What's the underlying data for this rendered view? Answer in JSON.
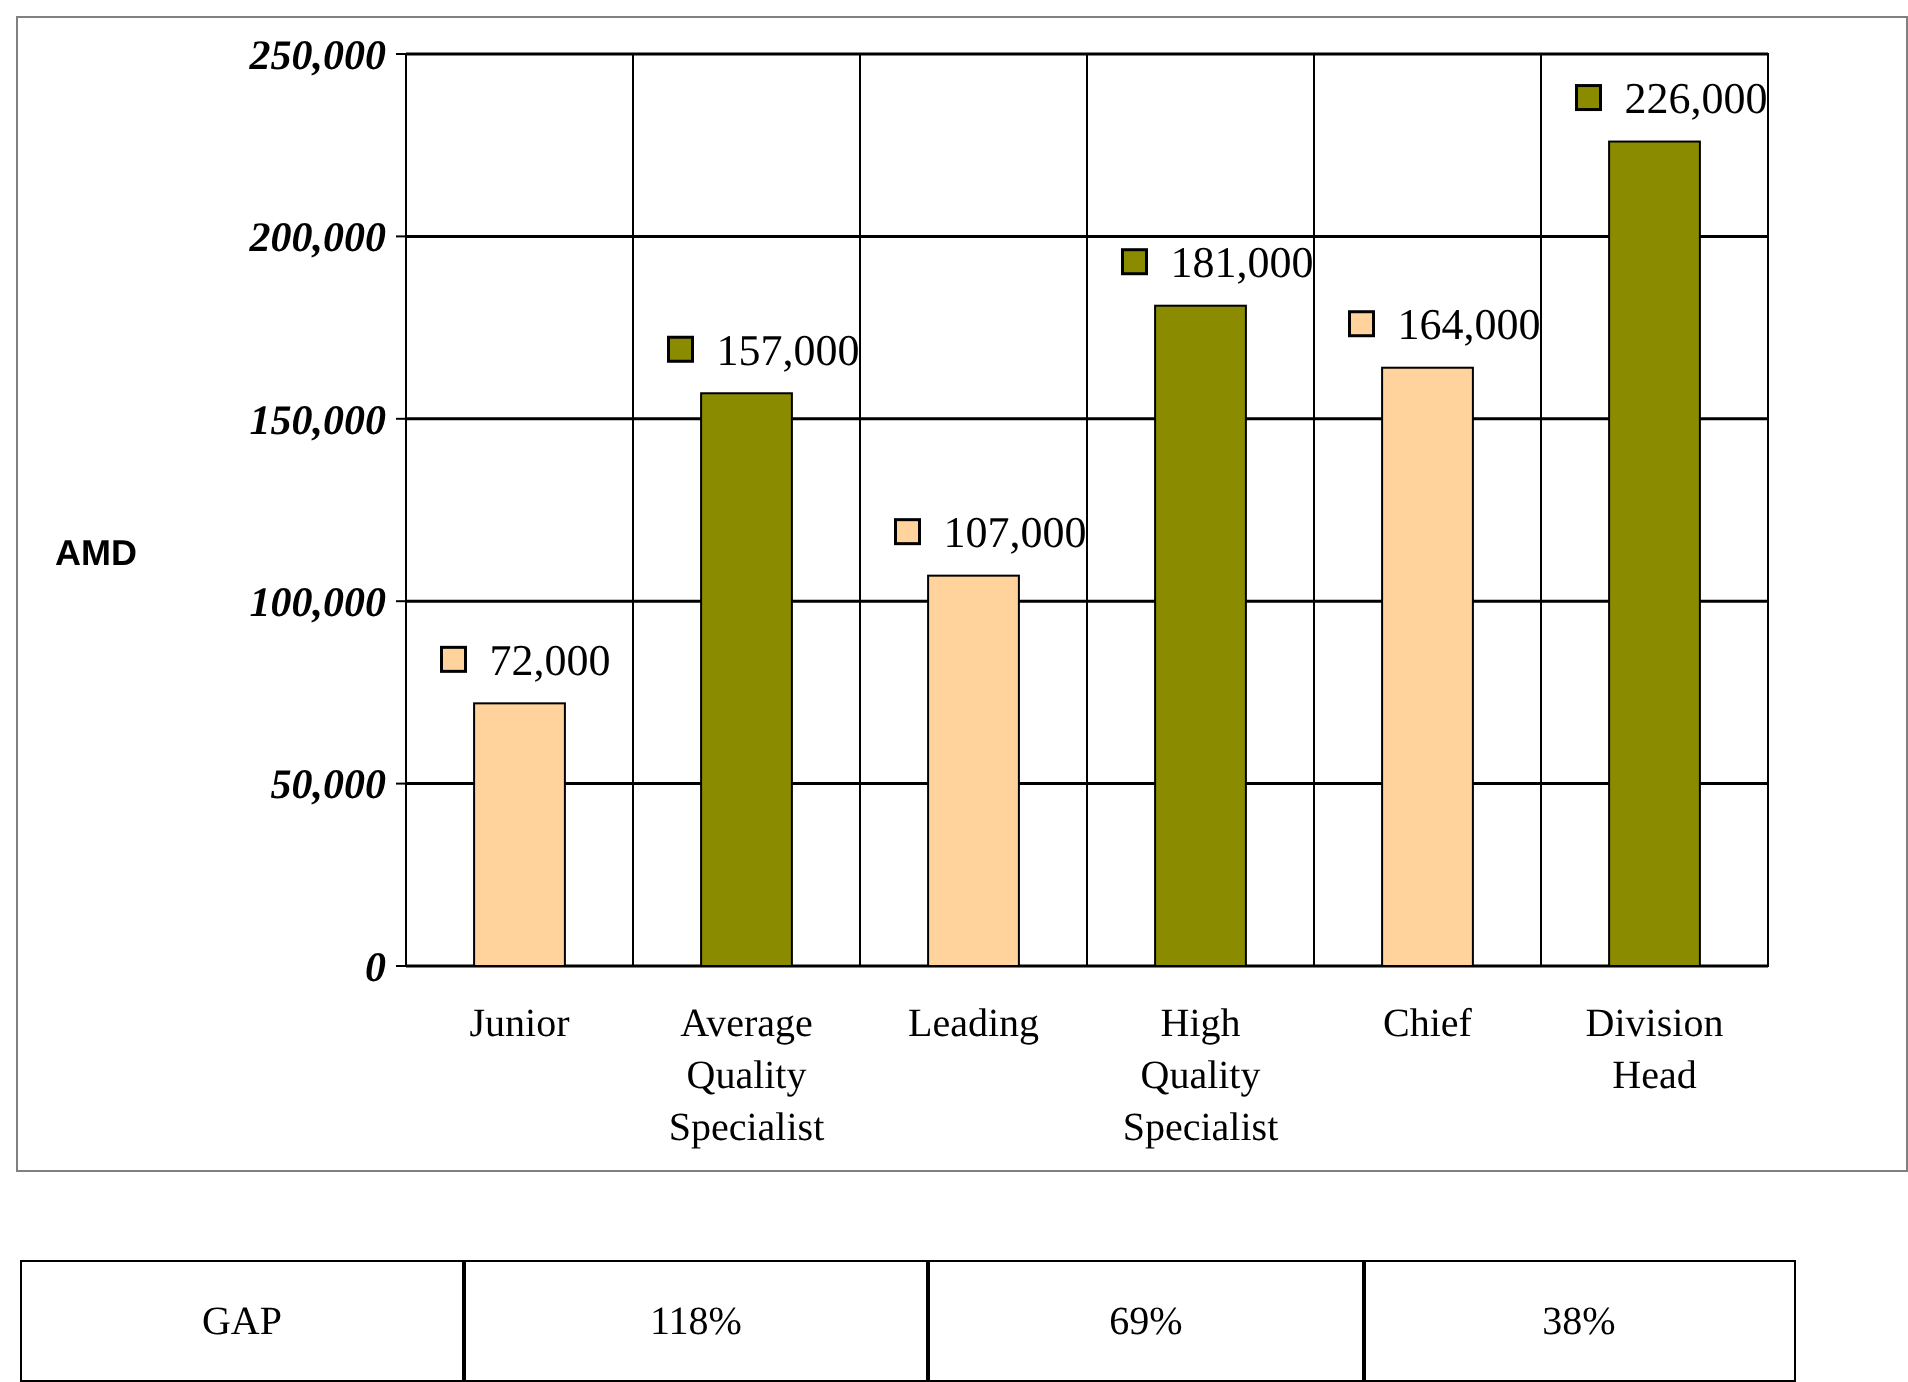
{
  "chart_data": {
    "type": "bar",
    "ylabel": "AMD",
    "categories": [
      "Junior",
      "Average Quality Specialist",
      "Leading",
      "High Quality Specialist",
      "Chief",
      "Division Head"
    ],
    "values": [
      72000,
      157000,
      107000,
      181000,
      164000,
      226000
    ],
    "colors": [
      "#ffd39b",
      "#8b8b00",
      "#ffd39b",
      "#8b8b00",
      "#ffd39b",
      "#8b8b00"
    ],
    "ylim": [
      0,
      250000
    ],
    "yticks": [
      {
        "value": 0,
        "label": "0"
      },
      {
        "value": 50000,
        "label": "50,000"
      },
      {
        "value": 100000,
        "label": "100,000"
      },
      {
        "value": 150000,
        "label": "150,000"
      },
      {
        "value": 200000,
        "label": "200,000"
      },
      {
        "value": 250000,
        "label": "250,000"
      }
    ],
    "grid": true,
    "value_labels": [
      "72,000",
      "157,000",
      "107,000",
      "181,000",
      "164,000",
      "226,000"
    ],
    "annotations": [
      "GAP",
      "118%",
      "69%",
      "38%"
    ]
  }
}
